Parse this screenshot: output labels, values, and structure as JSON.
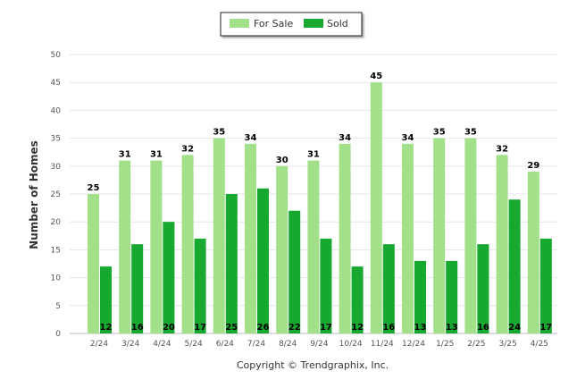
{
  "chart_data": {
    "type": "bar",
    "categories": [
      "2/24",
      "3/24",
      "4/24",
      "5/24",
      "6/24",
      "7/24",
      "8/24",
      "9/24",
      "10/24",
      "11/24",
      "12/24",
      "1/25",
      "2/25",
      "3/25",
      "4/25"
    ],
    "series": [
      {
        "name": "For Sale",
        "color": "#a3e08a",
        "values": [
          25,
          31,
          31,
          32,
          35,
          34,
          30,
          31,
          34,
          45,
          34,
          35,
          35,
          32,
          29
        ]
      },
      {
        "name": "Sold",
        "color": "#17a82f",
        "values": [
          12,
          16,
          20,
          17,
          25,
          26,
          22,
          17,
          12,
          16,
          13,
          13,
          16,
          24,
          17
        ]
      }
    ],
    "ylabel": "Number of Homes",
    "ylim": [
      0,
      50
    ],
    "yticks": [
      0,
      5,
      10,
      15,
      20,
      25,
      30,
      35,
      40,
      45,
      50
    ],
    "grid": true,
    "legend": "top-center",
    "footer": "Copyright © Trendgraphix, Inc."
  }
}
